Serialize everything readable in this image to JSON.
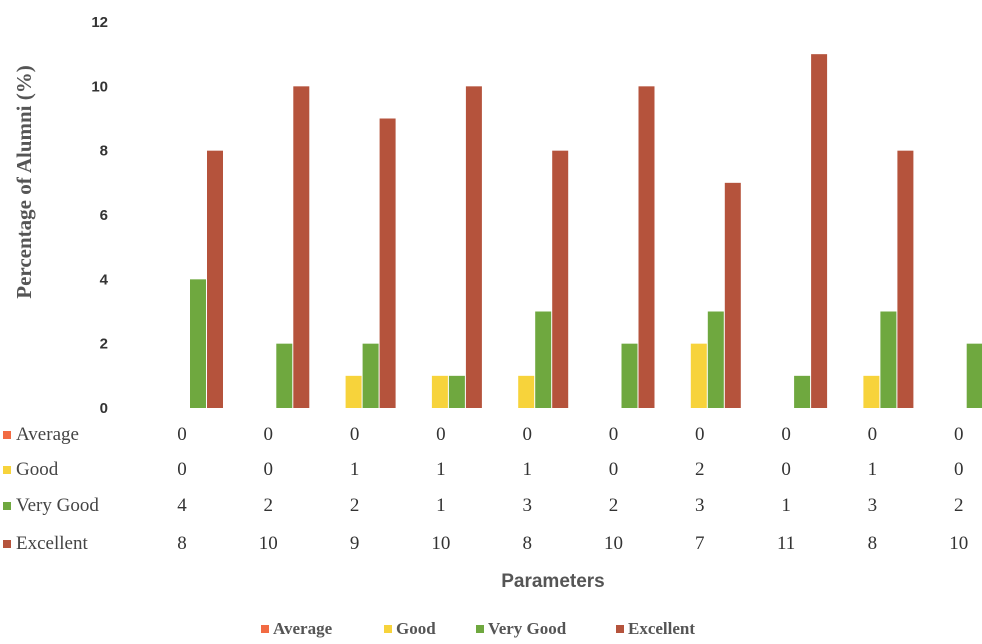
{
  "chart_data": {
    "type": "bar",
    "ylabel": "Percentage of Alumni (%)",
    "xlabel": "Parameters",
    "ylim": [
      0,
      12
    ],
    "yticks": [
      0,
      2,
      4,
      6,
      8,
      10,
      12
    ],
    "grid": false,
    "legend": "bottom",
    "x_count": 10,
    "series": [
      {
        "name": "Average",
        "color": "#f26b43",
        "values": [
          0,
          0,
          0,
          0,
          0,
          0,
          0,
          0,
          0,
          0
        ]
      },
      {
        "name": "Good",
        "color": "#f7d33b",
        "values": [
          0,
          0,
          1,
          1,
          1,
          0,
          2,
          0,
          1,
          0
        ]
      },
      {
        "name": "Very Good",
        "color": "#6fa83f",
        "values": [
          4,
          2,
          2,
          1,
          3,
          2,
          3,
          1,
          3,
          2
        ]
      },
      {
        "name": "Excellent",
        "color": "#b5533c",
        "values": [
          8,
          10,
          9,
          10,
          8,
          10,
          7,
          11,
          8,
          10
        ]
      }
    ]
  }
}
